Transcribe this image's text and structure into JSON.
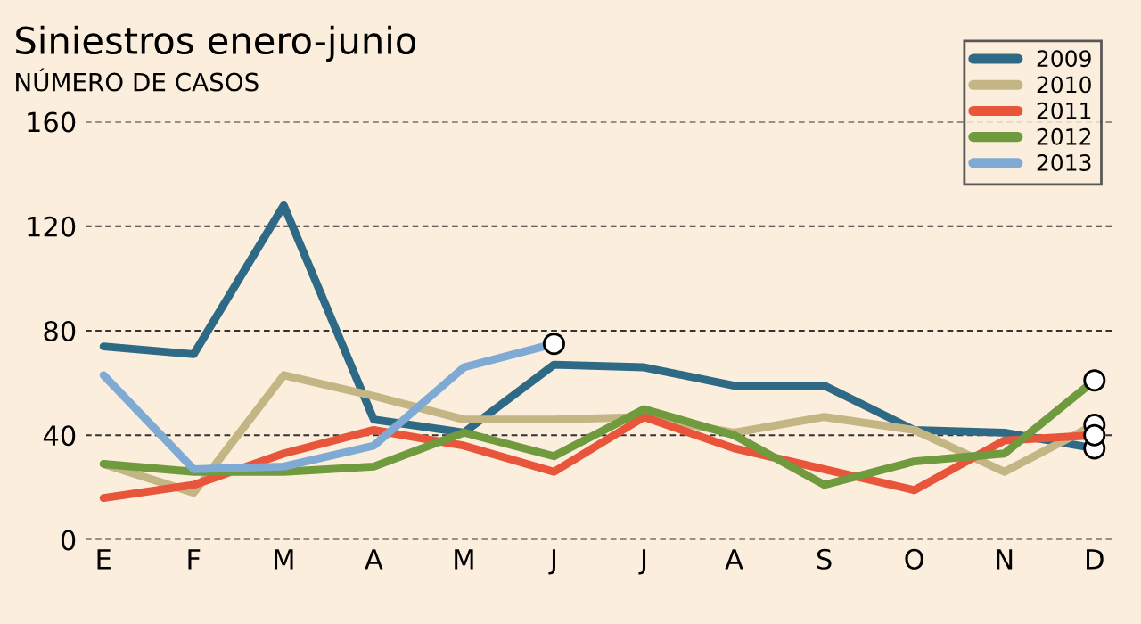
{
  "chart_data": {
    "type": "line",
    "title": "Siniestros enero-junio",
    "subtitle": "NÚMERO DE CASOS",
    "categories": [
      "E",
      "F",
      "M",
      "A",
      "M",
      "J",
      "J",
      "A",
      "S",
      "O",
      "N",
      "D"
    ],
    "series": [
      {
        "name": "2009",
        "color": "#2e6a86",
        "values": [
          74,
          71,
          128,
          46,
          41,
          67,
          66,
          59,
          59,
          42,
          41,
          35
        ]
      },
      {
        "name": "2010",
        "color": "#c4b584",
        "values": [
          29,
          18,
          63,
          55,
          46,
          46,
          47,
          41,
          47,
          42,
          26,
          44
        ]
      },
      {
        "name": "2011",
        "color": "#e8553a",
        "values": [
          16,
          21,
          33,
          42,
          36,
          26,
          47,
          35,
          27,
          19,
          38,
          40
        ]
      },
      {
        "name": "2012",
        "color": "#6f9a3e",
        "values": [
          29,
          26,
          26,
          28,
          41,
          32,
          50,
          40,
          21,
          30,
          33,
          61
        ]
      },
      {
        "name": "2013",
        "color": "#7eaad4",
        "values": [
          63,
          27,
          28,
          36,
          66,
          75,
          null,
          null,
          null,
          null,
          null,
          null
        ]
      }
    ],
    "ylim": [
      0,
      160
    ],
    "yticks": [
      0,
      40,
      80,
      120,
      160
    ],
    "grid": "y",
    "legend": "top right"
  }
}
